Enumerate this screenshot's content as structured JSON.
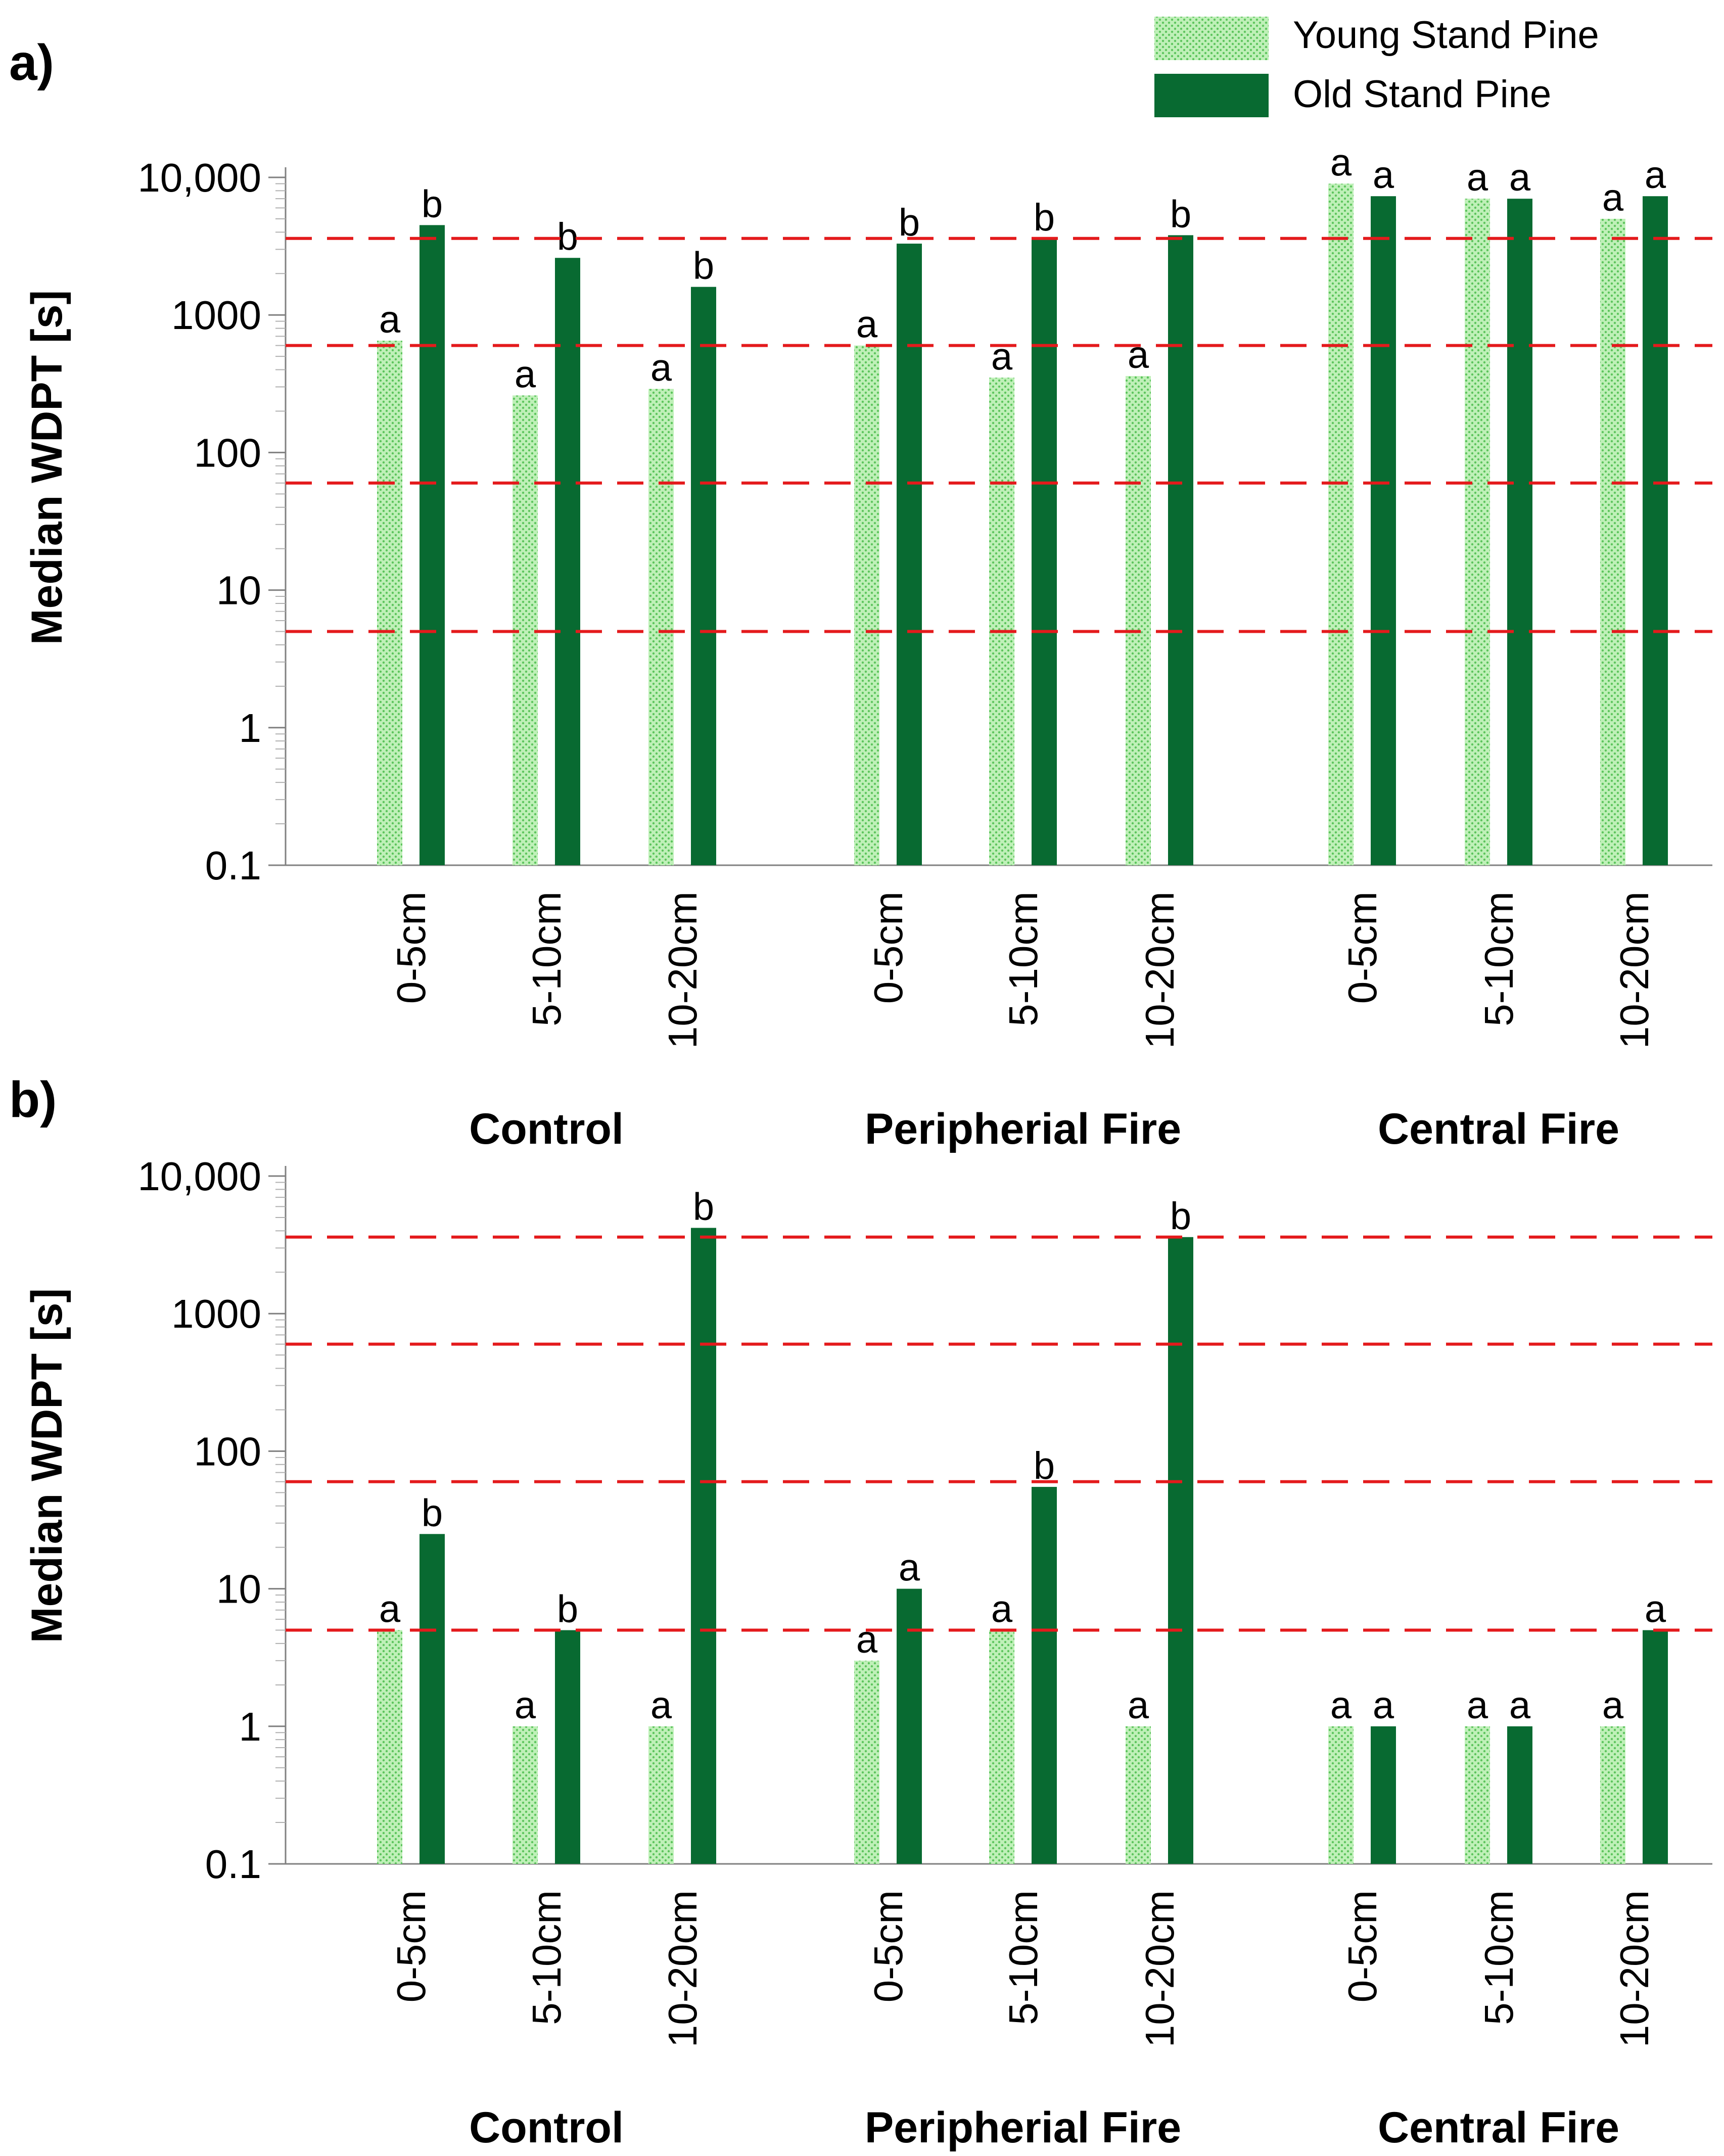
{
  "legend": {
    "young_label": "Young Stand Pine",
    "old_label": "Old Stand Pine"
  },
  "colors": {
    "young_fill": "#bff0b8",
    "young_dots": "#5cc45c",
    "old_fill": "#086a31",
    "threshold": "#e41a1c",
    "axis": "#808080"
  },
  "chart_data": [
    {
      "type": "bar",
      "panel_label": "a)",
      "ylabel": "Median WDPT [s]",
      "yscale": "log",
      "ylim": [
        0.1,
        10000
      ],
      "yticks": [
        0.1,
        1,
        10,
        100,
        1000,
        10000
      ],
      "ytick_labels": [
        "0.1",
        "1",
        "10",
        "100",
        "1000",
        "10,000"
      ],
      "thresholds": [
        5,
        60,
        600,
        3600
      ],
      "groups": [
        "Control",
        "Peripherial Fire",
        "Central Fire"
      ],
      "categories": [
        "0-5cm",
        "5-10cm",
        "10-20cm",
        "0-5cm",
        "5-10cm",
        "10-20cm",
        "0-5cm",
        "5-10cm",
        "10-20cm"
      ],
      "series": [
        {
          "name": "Young Stand Pine",
          "values": [
            650,
            260,
            290,
            600,
            350,
            360,
            9000,
            7000,
            5000
          ],
          "labels": [
            "a",
            "a",
            "a",
            "a",
            "a",
            "a",
            "a",
            "a",
            "a"
          ]
        },
        {
          "name": "Old Stand Pine",
          "values": [
            4500,
            2600,
            1600,
            3300,
            3600,
            3800,
            7300,
            7000,
            7300
          ],
          "labels": [
            "b",
            "b",
            "b",
            "b",
            "b",
            "b",
            "a",
            "a",
            "a"
          ]
        }
      ]
    },
    {
      "type": "bar",
      "panel_label": "b)",
      "ylabel": "Median WDPT [s]",
      "yscale": "log",
      "ylim": [
        0.1,
        10000
      ],
      "yticks": [
        0.1,
        1,
        10,
        100,
        1000,
        10000
      ],
      "ytick_labels": [
        "0.1",
        "1",
        "10",
        "100",
        "1000",
        "10,000"
      ],
      "thresholds": [
        5,
        60,
        600,
        3600
      ],
      "groups": [
        "Control",
        "Peripherial Fire",
        "Central Fire"
      ],
      "categories": [
        "0-5cm",
        "5-10cm",
        "10-20cm",
        "0-5cm",
        "5-10cm",
        "10-20cm",
        "0-5cm",
        "5-10cm",
        "10-20cm"
      ],
      "series": [
        {
          "name": "Young Stand Pine",
          "values": [
            5,
            1,
            1,
            3,
            5,
            1,
            1,
            1,
            1
          ],
          "labels": [
            "a",
            "a",
            "a",
            "a",
            "a",
            "a",
            "a",
            "a",
            "a"
          ]
        },
        {
          "name": "Old Stand Pine",
          "values": [
            25,
            5,
            4200,
            10,
            55,
            3600,
            1,
            1,
            5
          ],
          "labels": [
            "b",
            "b",
            "b",
            "a",
            "b",
            "b",
            "a",
            "a",
            "a"
          ]
        }
      ]
    }
  ]
}
